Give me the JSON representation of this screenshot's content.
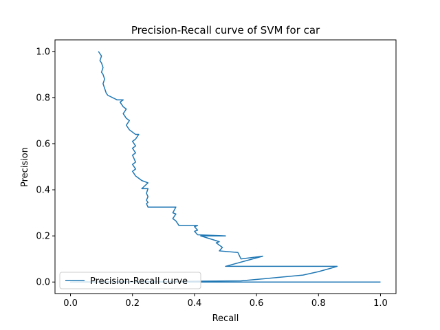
{
  "chart_data": {
    "type": "line",
    "title": "Precision-Recall curve of SVM for car",
    "xlabel": "Recall",
    "ylabel": "Precision",
    "xlim": [
      -0.05,
      1.05
    ],
    "ylim": [
      -0.05,
      1.05
    ],
    "xticks": [
      0.0,
      0.2,
      0.4,
      0.6,
      0.8,
      1.0
    ],
    "yticks": [
      0.0,
      0.2,
      0.4,
      0.6,
      0.8,
      1.0
    ],
    "xtick_labels": [
      "0.0",
      "0.2",
      "0.4",
      "0.6",
      "0.8",
      "1.0"
    ],
    "ytick_labels": [
      "0.0",
      "0.2",
      "0.4",
      "0.6",
      "0.8",
      "1.0"
    ],
    "grid": false,
    "legend": {
      "placement": "lower-left",
      "entries": [
        "Precision-Recall curve"
      ]
    },
    "series": [
      {
        "name": "Precision-Recall curve",
        "color": "#1f77b4",
        "x": [
          1.0,
          0.0,
          0.55,
          0.67,
          0.75,
          0.8,
          0.84,
          0.86,
          0.5,
          0.62,
          0.55,
          0.54,
          0.48,
          0.49,
          0.47,
          0.48,
          0.42,
          0.5,
          0.41,
          0.4,
          0.41,
          0.4,
          0.41,
          0.4,
          0.35,
          0.34,
          0.33,
          0.34,
          0.33,
          0.34,
          0.33,
          0.25,
          0.245,
          0.25,
          0.245,
          0.25,
          0.245,
          0.25,
          0.23,
          0.25,
          0.23,
          0.22,
          0.21,
          0.2,
          0.21,
          0.2,
          0.21,
          0.2,
          0.21,
          0.2,
          0.21,
          0.2,
          0.21,
          0.22,
          0.21,
          0.19,
          0.18,
          0.19,
          0.18,
          0.17,
          0.18,
          0.17,
          0.16,
          0.17,
          0.15,
          0.12,
          0.115,
          0.11,
          0.105,
          0.11,
          0.105,
          0.1,
          0.105,
          0.1,
          0.095,
          0.1,
          0.095,
          0.09
        ],
        "y": [
          0.0,
          0.0,
          0.005,
          0.02,
          0.03,
          0.045,
          0.06,
          0.068,
          0.068,
          0.112,
          0.1,
          0.128,
          0.135,
          0.15,
          0.17,
          0.175,
          0.2,
          0.2,
          0.205,
          0.22,
          0.225,
          0.24,
          0.245,
          0.245,
          0.245,
          0.265,
          0.275,
          0.295,
          0.3,
          0.325,
          0.325,
          0.325,
          0.34,
          0.345,
          0.355,
          0.37,
          0.385,
          0.405,
          0.405,
          0.43,
          0.44,
          0.45,
          0.46,
          0.48,
          0.49,
          0.51,
          0.52,
          0.55,
          0.56,
          0.58,
          0.59,
          0.61,
          0.62,
          0.64,
          0.64,
          0.66,
          0.68,
          0.7,
          0.71,
          0.73,
          0.75,
          0.76,
          0.78,
          0.79,
          0.79,
          0.81,
          0.82,
          0.84,
          0.86,
          0.88,
          0.9,
          0.91,
          0.93,
          0.95,
          0.96,
          0.98,
          0.99,
          1.0
        ]
      }
    ]
  }
}
